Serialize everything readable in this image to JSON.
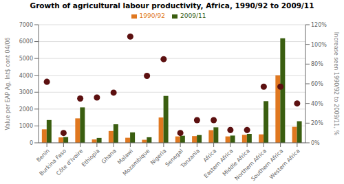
{
  "chart_data": {
    "type": "bar",
    "title": "Growth of agricultural labour productivity, Africa, 1990/92 to 2009/11",
    "categories": [
      "Benin",
      "Burkina Faso",
      "Côte d'Ivoire",
      "Ethiopia",
      "Ghana",
      "Malawi",
      "Mozambique",
      "Nigeria",
      "Senegal",
      "Tanzania",
      "Africa",
      "Eastern Africa",
      "Middle Africa",
      "Northern Africa",
      "Southern Africa",
      "Western Africa"
    ],
    "series": [
      {
        "name": "1990/92",
        "color": "#e07820",
        "values": [
          800,
          320,
          1450,
          200,
          700,
          300,
          180,
          1500,
          380,
          400,
          750,
          380,
          470,
          500,
          4000,
          950
        ]
      },
      {
        "name": "2009/11",
        "color": "#3a5e10",
        "values": [
          1350,
          340,
          2100,
          290,
          1100,
          620,
          330,
          2780,
          420,
          460,
          920,
          430,
          530,
          2470,
          6200,
          1280
        ]
      },
      {
        "type": "scatter",
        "color": "#5c1010",
        "axis": "y2",
        "values": [
          0.62,
          0.1,
          0.45,
          0.46,
          0.51,
          1.08,
          0.68,
          0.85,
          0.1,
          0.23,
          0.23,
          0.13,
          0.13,
          0.57,
          0.57,
          0.4
        ]
      }
    ],
    "ylabel": "Value per EAP Ag, Int$ cont 04/06",
    "y2label": "Increase seen 1990/92 to 2009/11, %",
    "ylim": [
      0,
      7000
    ],
    "yticks": [
      0,
      1000,
      2000,
      3000,
      4000,
      5000,
      6000,
      7000
    ],
    "y2lim": [
      0,
      1.2
    ],
    "y2ticks": [
      {
        "value": 0.0,
        "label": "0%"
      },
      {
        "value": 0.2,
        "label": "20%"
      },
      {
        "value": 0.4,
        "label": "40%"
      },
      {
        "value": 0.6,
        "label": "60%"
      },
      {
        "value": 0.8,
        "label": "80%"
      },
      {
        "value": 1.0,
        "label": "100%"
      },
      {
        "value": 1.2,
        "label": "120%"
      }
    ],
    "grid": true,
    "legend": "top"
  }
}
